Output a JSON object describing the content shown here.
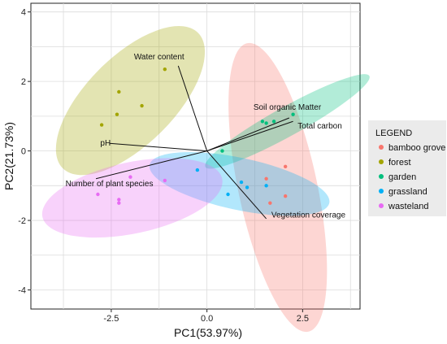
{
  "chart_data": {
    "type": "scatter",
    "xlabel": "PC1(53.97%)",
    "ylabel": "PC2(21.73%)",
    "xlim": [
      -4.6,
      4.0
    ],
    "ylim": [
      -4.55,
      4.25
    ],
    "xticks": [
      -2.5,
      0.0,
      2.5
    ],
    "xtick_labels": [
      "-2.5",
      "0.0",
      "2.5"
    ],
    "yticks": [
      -4,
      -2,
      0,
      2,
      4
    ],
    "ytick_labels": [
      "-4",
      "-2",
      "0",
      "2",
      "4"
    ],
    "grid": true,
    "legend": {
      "title": "LEGEND",
      "placement": "right"
    },
    "series": [
      {
        "name": "bamboo grove",
        "color": "#F8766D",
        "points": [
          [
            2.05,
            -0.45
          ],
          [
            1.55,
            -0.8
          ],
          [
            2.05,
            -1.3
          ],
          [
            1.65,
            -1.5
          ]
        ],
        "ellipse": {
          "cx": 1.85,
          "cy": -1.05,
          "rx": 3.85,
          "ry": 1.03,
          "angle": -78
        }
      },
      {
        "name": "forest",
        "color": "#A3A500",
        "points": [
          [
            -1.1,
            2.35
          ],
          [
            -2.3,
            1.7
          ],
          [
            -1.7,
            1.3
          ],
          [
            -2.35,
            1.05
          ],
          [
            -2.75,
            0.75
          ]
        ],
        "ellipse": {
          "cx": -2.0,
          "cy": 1.45,
          "rx": 2.5,
          "ry": 1.15,
          "angle": 45
        }
      },
      {
        "name": "garden",
        "color": "#00BF7D",
        "points": [
          [
            0.4,
            0.0
          ],
          [
            1.45,
            0.85
          ],
          [
            1.75,
            0.85
          ],
          [
            2.25,
            1.05
          ],
          [
            1.55,
            0.8
          ]
        ],
        "ellipse": {
          "cx": 2.1,
          "cy": 0.85,
          "rx": 2.45,
          "ry": 0.38,
          "angle": 29
        }
      },
      {
        "name": "grassland",
        "color": "#00B0F6",
        "points": [
          [
            -0.25,
            -0.55
          ],
          [
            0.9,
            -0.9
          ],
          [
            1.05,
            -1.05
          ],
          [
            0.55,
            -1.25
          ],
          [
            1.55,
            -1.0
          ]
        ],
        "ellipse": {
          "cx": 0.85,
          "cy": -0.95,
          "rx": 2.4,
          "ry": 0.68,
          "angle": -12
        }
      },
      {
        "name": "wasteland",
        "color": "#E76BF3",
        "points": [
          [
            -2.0,
            -0.75
          ],
          [
            -1.1,
            -0.85
          ],
          [
            -2.85,
            -1.25
          ],
          [
            -2.3,
            -1.4
          ],
          [
            -2.3,
            -1.5
          ]
        ],
        "ellipse": {
          "cx": -1.95,
          "cy": -1.35,
          "rx": 2.4,
          "ry": 0.93,
          "angle": 12
        }
      }
    ],
    "loadings": [
      {
        "label": "Water content",
        "x": -0.75,
        "y": 2.45,
        "label_x": -1.25,
        "label_y": 2.7
      },
      {
        "label": "Soil organic Matter",
        "x": 2.15,
        "y": 0.95,
        "label_x": 2.1,
        "label_y": 1.25
      },
      {
        "label": "Total carbon",
        "x": 2.25,
        "y": 0.85,
        "label_x": 2.95,
        "label_y": 0.72
      },
      {
        "label": "pH",
        "x": -2.55,
        "y": 0.22,
        "label_x": -2.65,
        "label_y": 0.22
      },
      {
        "label": "Number of plant species",
        "x": -2.9,
        "y": -0.8,
        "label_x": -2.55,
        "label_y": -0.95
      },
      {
        "label": "Vegetation coverage",
        "x": 1.55,
        "y": -1.95,
        "label_x": 2.65,
        "label_y": -1.85
      }
    ]
  }
}
